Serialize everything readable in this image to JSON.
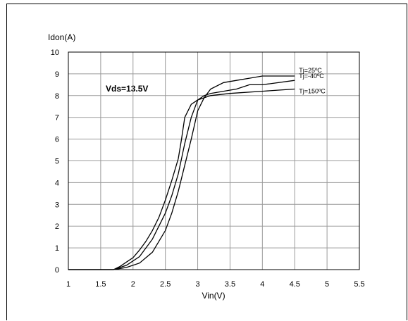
{
  "chart_data": {
    "type": "line",
    "title": "",
    "xlabel": "Vin(V)",
    "ylabel": "Idon(A)",
    "annotation": "Vds=13.5V",
    "xlim": [
      1,
      5.5
    ],
    "ylim": [
      0,
      10
    ],
    "xticks": [
      "1",
      "1.5",
      "2",
      "2.5",
      "3",
      "3.5",
      "4",
      "4.5",
      "5",
      "5.5"
    ],
    "yticks": [
      "0",
      "1",
      "2",
      "3",
      "4",
      "5",
      "6",
      "7",
      "8",
      "9",
      "10"
    ],
    "grid": true,
    "series": [
      {
        "name": "Tj=25ºC",
        "x": [
          1.0,
          1.7,
          1.9,
          2.1,
          2.3,
          2.5,
          2.6,
          2.7,
          2.8,
          2.9,
          3.0,
          3.1,
          3.2,
          3.4,
          3.6,
          3.8,
          4.0,
          4.5
        ],
        "y": [
          0,
          0,
          0.1,
          0.3,
          0.8,
          1.8,
          2.6,
          3.6,
          4.8,
          6.0,
          7.3,
          7.9,
          8.3,
          8.6,
          8.7,
          8.8,
          8.9,
          8.9
        ]
      },
      {
        "name": "Tj=-40ºC",
        "x": [
          1.0,
          1.7,
          1.9,
          2.1,
          2.3,
          2.5,
          2.6,
          2.7,
          2.8,
          2.9,
          3.0,
          3.1,
          3.2,
          3.4,
          3.6,
          3.8,
          4.0,
          4.5
        ],
        "y": [
          0,
          0,
          0.2,
          0.6,
          1.4,
          2.6,
          3.4,
          4.4,
          5.8,
          7.0,
          7.8,
          8.0,
          8.1,
          8.2,
          8.3,
          8.5,
          8.5,
          8.7
        ]
      },
      {
        "name": "Tj=150ºC",
        "x": [
          1.0,
          1.7,
          1.8,
          1.9,
          2.0,
          2.1,
          2.2,
          2.3,
          2.4,
          2.5,
          2.6,
          2.7,
          2.75,
          2.8,
          2.9,
          3.0,
          3.2,
          3.5,
          4.0,
          4.5
        ],
        "y": [
          0,
          0,
          0.15,
          0.35,
          0.55,
          0.9,
          1.3,
          1.8,
          2.4,
          3.2,
          4.1,
          5.1,
          6.0,
          7.0,
          7.6,
          7.8,
          8.0,
          8.1,
          8.2,
          8.3
        ]
      }
    ]
  }
}
